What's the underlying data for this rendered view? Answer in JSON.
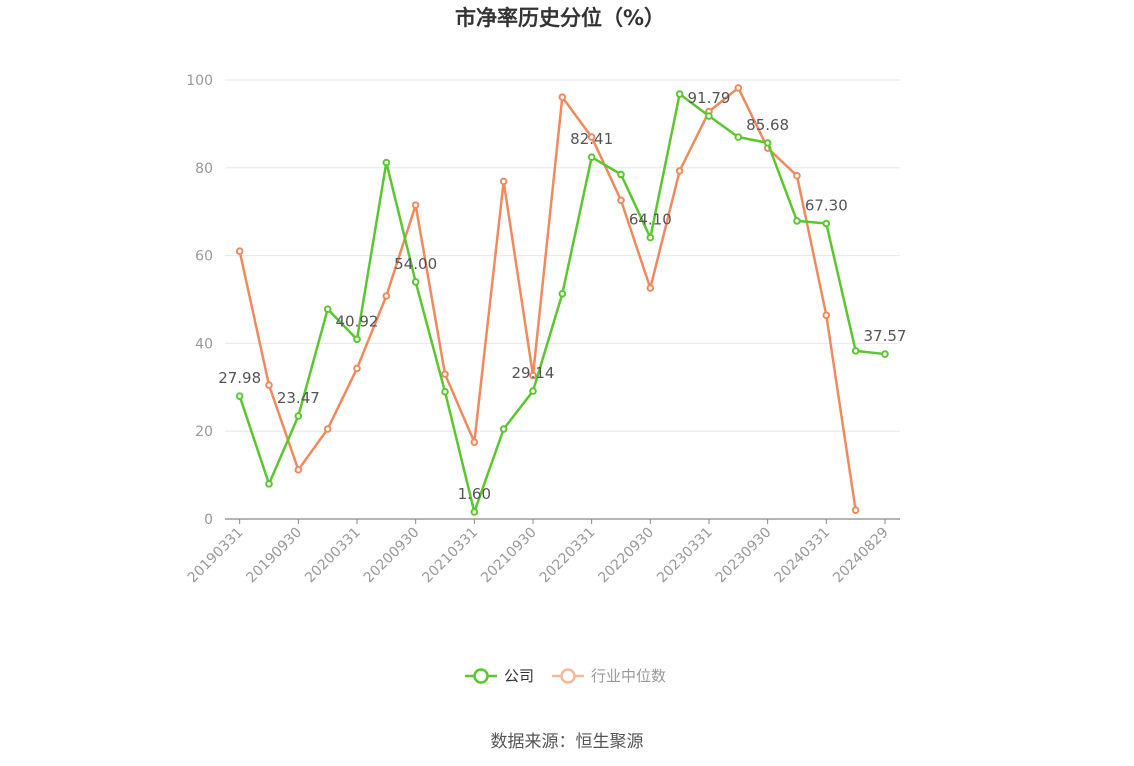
{
  "chart_data": {
    "type": "line",
    "title": "市净率历史分位（%）",
    "ylim": [
      0,
      100
    ],
    "yticks": [
      0,
      20,
      40,
      60,
      80,
      100
    ],
    "x": [
      "20190331",
      "20190630",
      "20190930",
      "20191231",
      "20200331",
      "20200630",
      "20200930",
      "20201231",
      "20210331",
      "20210630",
      "20210930",
      "20211231",
      "20220331",
      "20220630",
      "20220930",
      "20221231",
      "20230331",
      "20230630",
      "20230930",
      "20231231",
      "20240331",
      "20240630",
      "20240829"
    ],
    "xtick_labels": [
      "20190331",
      "20190930",
      "20200331",
      "20200930",
      "20210331",
      "20210930",
      "20220331",
      "20220930",
      "20230331",
      "20230930",
      "20240331",
      "20240829"
    ],
    "grid": true,
    "legend_position": "bottom",
    "series": [
      {
        "name": "公司",
        "color": "#5ac72e",
        "values": [
          27.98,
          8.0,
          23.47,
          47.8,
          40.92,
          81.2,
          54.0,
          29.0,
          1.6,
          20.5,
          29.14,
          51.3,
          82.41,
          78.5,
          64.1,
          96.8,
          91.79,
          87.0,
          85.68,
          67.9,
          67.3,
          38.3,
          37.57
        ],
        "data_labels": [
          {
            "index": 0,
            "text": "27.98"
          },
          {
            "index": 2,
            "text": "23.47"
          },
          {
            "index": 4,
            "text": "40.92"
          },
          {
            "index": 6,
            "text": "54.00"
          },
          {
            "index": 8,
            "text": "1.60"
          },
          {
            "index": 10,
            "text": "29.14"
          },
          {
            "index": 12,
            "text": "82.41"
          },
          {
            "index": 14,
            "text": "64.10"
          },
          {
            "index": 16,
            "text": "91.79"
          },
          {
            "index": 18,
            "text": "85.68"
          },
          {
            "index": 20,
            "text": "67.30"
          },
          {
            "index": 22,
            "text": "37.57"
          }
        ]
      },
      {
        "name": "行业中位数",
        "color": "#f08a5d",
        "values": [
          61.0,
          30.5,
          11.2,
          20.5,
          34.3,
          50.8,
          71.5,
          33.0,
          17.5,
          76.9,
          32.7,
          96.1,
          87.0,
          72.6,
          52.6,
          79.3,
          92.8,
          98.2,
          84.5,
          78.2,
          46.4,
          2.0,
          null
        ]
      }
    ]
  },
  "source_text": "数据来源：恒生聚源"
}
